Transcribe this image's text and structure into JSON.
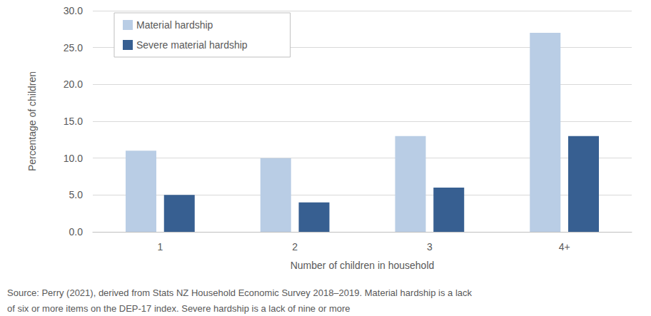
{
  "chart_data": {
    "type": "bar",
    "categories": [
      "1",
      "2",
      "3",
      "4+"
    ],
    "series": [
      {
        "name": "Material hardship",
        "color": "#b9cde5",
        "values": [
          11,
          10,
          13,
          27
        ]
      },
      {
        "name": "Severe material hardship",
        "color": "#375f91",
        "values": [
          5,
          4,
          6,
          13
        ]
      }
    ],
    "x_label": "Number of children in household",
    "y_label": "Percentage of children",
    "ylim": [
      0,
      30
    ],
    "yticks": [
      {
        "value": 0,
        "label": "0.0"
      },
      {
        "value": 5,
        "label": "5.0"
      },
      {
        "value": 10,
        "label": "10.0"
      },
      {
        "value": 15,
        "label": "15.0"
      },
      {
        "value": 20,
        "label": "20.0"
      },
      {
        "value": 25,
        "label": "25.0"
      },
      {
        "value": 30,
        "label": "30.0"
      }
    ],
    "grid": true,
    "legend": "top-left",
    "note": "Source: Perry (2021), derived from Stats NZ Household Economic Survey 2018–2019. Material hardship is a lack\nof six or more items on the DEP-17 index. Severe hardship is a lack of nine or more"
  }
}
